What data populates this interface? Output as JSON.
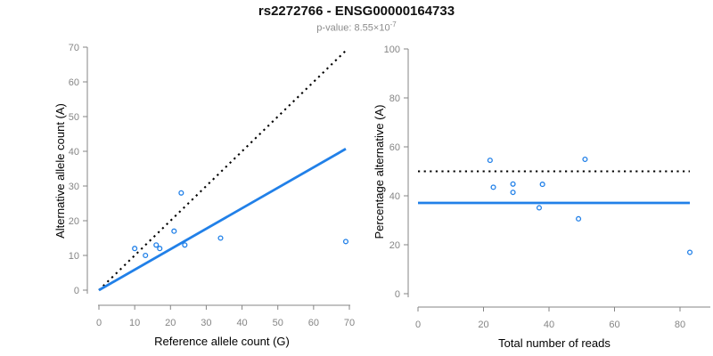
{
  "header": {
    "title": "rs2272766 - ENSG00000164733",
    "p_value_prefix": "p-value: 8.55×10",
    "p_value_exponent": "-7"
  },
  "colors": {
    "accent_blue": "#2180E8",
    "reference_black": "#000000",
    "axis_gray": "#858585",
    "subtitle_gray": "#8c8c8c"
  },
  "chart_data": [
    {
      "type": "scatter",
      "name": "allele-count-scatter",
      "xlabel": "Reference allele count (G)",
      "ylabel": "Alternative allele count (A)",
      "xlim": [
        0,
        70
      ],
      "ylim": [
        0,
        70
      ],
      "xticks": [
        0,
        10,
        20,
        30,
        40,
        50,
        60,
        70
      ],
      "yticks": [
        0,
        10,
        20,
        30,
        40,
        50,
        60,
        70
      ],
      "grid": false,
      "legend": null,
      "points": [
        [
          10,
          12
        ],
        [
          13,
          10
        ],
        [
          16,
          13
        ],
        [
          17,
          12
        ],
        [
          21,
          17
        ],
        [
          23,
          28
        ],
        [
          24,
          13
        ],
        [
          34,
          15
        ],
        [
          69,
          14
        ]
      ],
      "lines": [
        {
          "name": "identity-dotted-line",
          "style": "dotted",
          "color": "#000000",
          "x1": 0,
          "y1": 0,
          "x2": 69,
          "y2": 69
        },
        {
          "name": "fit-line",
          "style": "solid",
          "color": "#2180E8",
          "x1": 0,
          "y1": 0,
          "x2": 69,
          "y2": 40.7
        }
      ]
    },
    {
      "type": "scatter",
      "name": "percentage-alternative-scatter",
      "xlabel": "Total number of reads",
      "ylabel": "Percentage alternative (A)",
      "xlim": [
        0,
        80
      ],
      "ylim": [
        0,
        100
      ],
      "xticks": [
        0,
        20,
        40,
        60,
        80
      ],
      "yticks": [
        0,
        20,
        40,
        60,
        80,
        100
      ],
      "grid": false,
      "legend": null,
      "points": [
        [
          22,
          54.5
        ],
        [
          23,
          43.5
        ],
        [
          29,
          44.8
        ],
        [
          29,
          41.4
        ],
        [
          38,
          44.7
        ],
        [
          37,
          35.1
        ],
        [
          51,
          54.9
        ],
        [
          49,
          30.6
        ],
        [
          83,
          16.9
        ]
      ],
      "lines": [
        {
          "name": "expected-50pct-dotted-line",
          "style": "dotted",
          "color": "#000000",
          "x1": 0,
          "y1": 50,
          "x2": 83,
          "y2": 50
        },
        {
          "name": "fit-line",
          "style": "solid",
          "color": "#2180E8",
          "x1": 0,
          "y1": 37.1,
          "x2": 83,
          "y2": 37.1
        }
      ]
    }
  ]
}
